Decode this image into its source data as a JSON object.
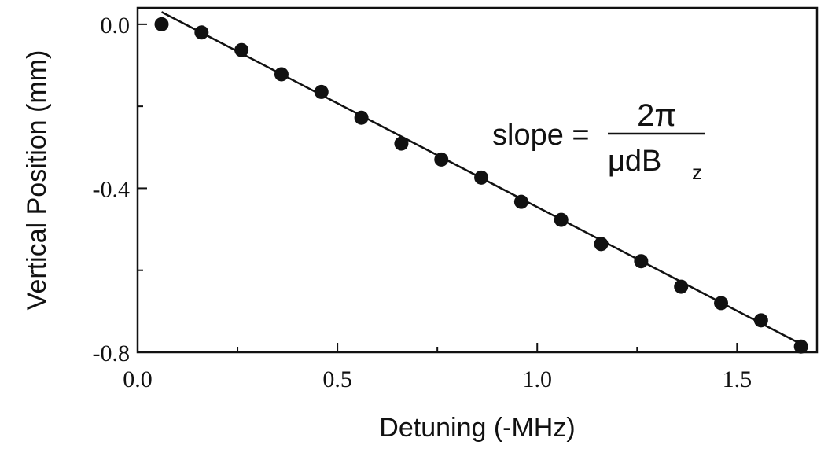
{
  "chart_data": {
    "type": "scatter",
    "xlabel": "Detuning (-MHz)",
    "ylabel": "Vertical Position (mm)",
    "xlim": [
      0.0,
      1.7
    ],
    "ylim": [
      -0.8,
      0.04
    ],
    "x_ticks_major": [
      0.0,
      0.5,
      1.0,
      1.5
    ],
    "x_tick_labels": [
      "0.0",
      "0.5",
      "1.0",
      "1.5"
    ],
    "x_ticks_minor": [
      0.25,
      0.75,
      1.25
    ],
    "y_ticks_major": [
      0.0,
      -0.4,
      -0.8
    ],
    "y_tick_labels": [
      "0.0",
      "-0.4",
      "-0.8"
    ],
    "y_ticks_minor": [
      -0.2,
      -0.6
    ],
    "grid": false,
    "legend": "none",
    "series": [
      {
        "kind": "points",
        "x": [
          0.06,
          0.16,
          0.26,
          0.36,
          0.46,
          0.56,
          0.66,
          0.76,
          0.86,
          0.96,
          1.06,
          1.16,
          1.26,
          1.36,
          1.46,
          1.56,
          1.66
        ],
        "y": [
          0.0,
          -0.02,
          -0.063,
          -0.122,
          -0.165,
          -0.228,
          -0.291,
          -0.33,
          -0.374,
          -0.433,
          -0.477,
          -0.536,
          -0.578,
          -0.64,
          -0.68,
          -0.722,
          -0.786
        ]
      },
      {
        "kind": "fit-line",
        "x": [
          0.06,
          1.67
        ],
        "y": [
          0.03,
          -0.785
        ]
      }
    ],
    "annotation": {
      "lhs": "slope =",
      "numerator": "2π",
      "denominator": "μdB",
      "subscript": "z"
    }
  }
}
